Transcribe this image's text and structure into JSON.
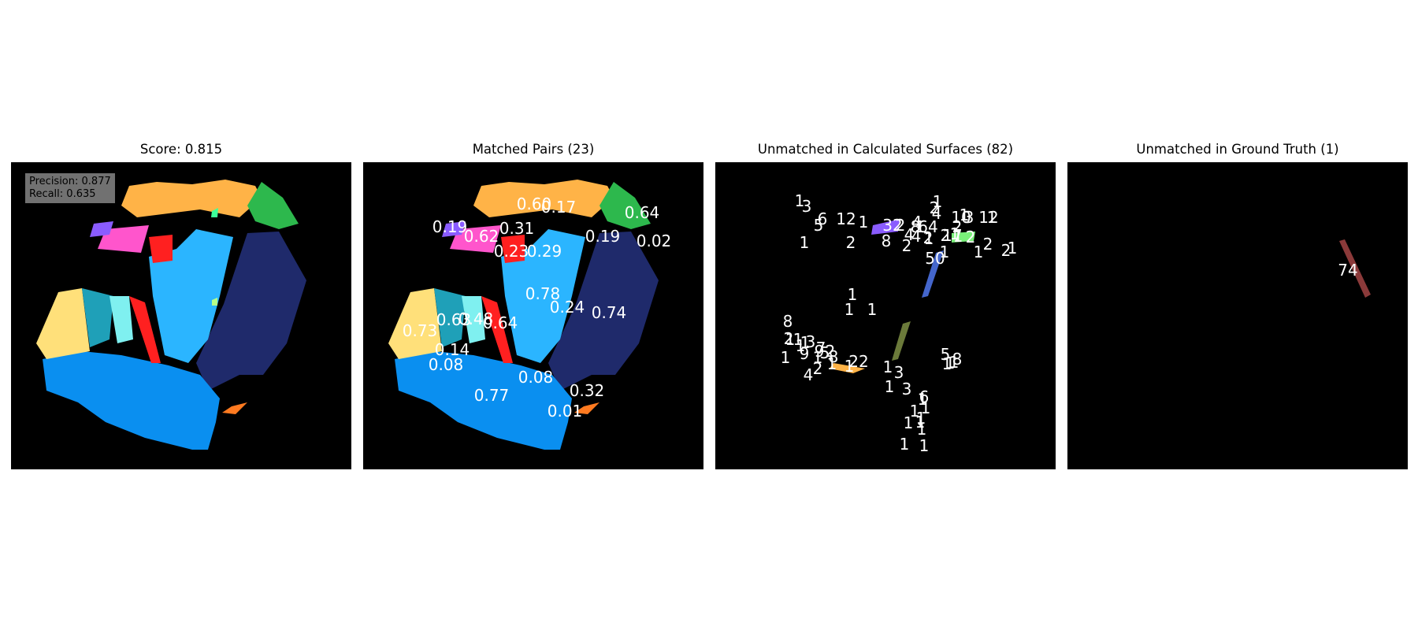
{
  "panels": [
    {
      "title": "Score: 0.815"
    },
    {
      "title": "Matched Pairs (23)"
    },
    {
      "title": "Unmatched in Calculated Surfaces (82)"
    },
    {
      "title": "Unmatched in Ground Truth (1)"
    }
  ],
  "metrics": {
    "precision": "Precision: 0.877",
    "recall": "Recall: 0.635"
  },
  "matched_labels": [
    "0.60",
    "0.17",
    "0.64",
    "0.19",
    "0.62",
    "0.31",
    "0.19",
    "0.02",
    "0.23",
    "0.29",
    "0.78",
    "0.24",
    "0.74",
    "0.63",
    "0.48",
    "0.64",
    "0.73",
    "0.14",
    "0.08",
    "0.08",
    "0.77",
    "0.32",
    "0.01"
  ],
  "unmatched_calc_labels": [
    "1",
    "3",
    "6",
    "12",
    "5",
    "1",
    "1",
    "2",
    "32",
    "4",
    "1",
    "2",
    "4",
    "1",
    "3",
    "10",
    "2",
    "12",
    "1",
    "2",
    "1",
    "8",
    "64",
    "4",
    "2",
    "8",
    "2",
    "4",
    "1",
    "2",
    "17",
    "1",
    "1",
    "2",
    "50",
    "1",
    "1",
    "2",
    "1",
    "2",
    "1",
    "1",
    "8",
    "2",
    "1",
    "3",
    "2",
    "9",
    "5",
    "1",
    "1",
    "8",
    "22",
    "1",
    "3",
    "1",
    "1",
    "5",
    "1",
    "8",
    "1",
    "3",
    "1",
    "6",
    "1",
    "1",
    "1",
    "1",
    "1",
    "1",
    "1",
    "1",
    "9",
    "2",
    "4",
    "1",
    "1",
    "1",
    "7",
    "1",
    "1",
    "1"
  ],
  "unmatched_gt_labels": [
    "74"
  ],
  "colors": {
    "orange": "#ffb347",
    "green": "#2db84d",
    "navy": "#1f2a6b",
    "lightblue": "#2bb5ff",
    "blue": "#0a8ff0",
    "yellow": "#ffe07a",
    "teal": "#1fa0b8",
    "cyan": "#7ff0f0",
    "red": "#ff2020",
    "pink": "#ff55cc",
    "purple": "#8a5cff",
    "maroon": "#8b3a3a",
    "olive": "#6b7a3a"
  }
}
